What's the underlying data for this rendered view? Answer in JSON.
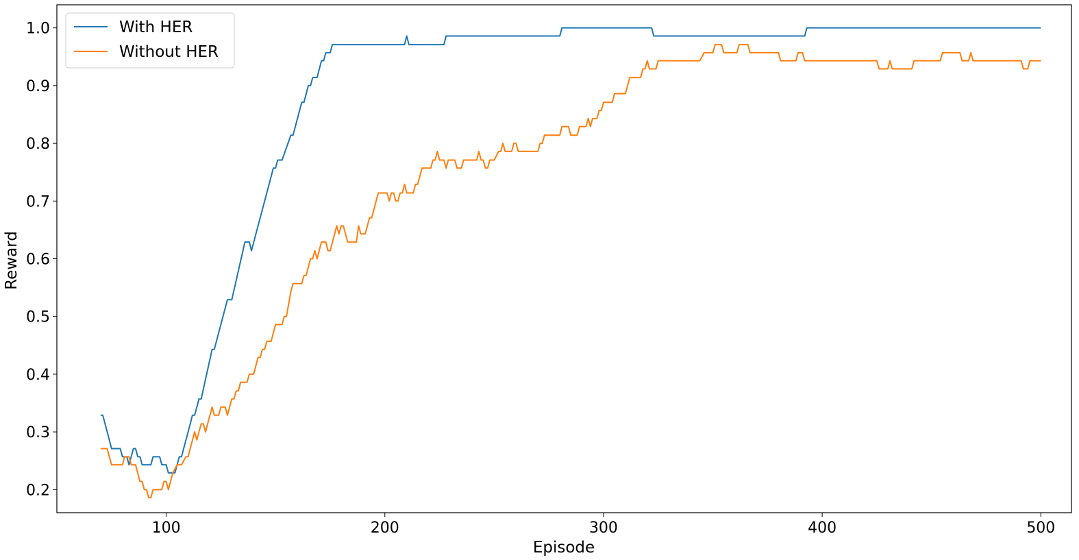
{
  "chart_data": {
    "type": "line",
    "title": "",
    "xlabel": "Episode",
    "ylabel": "Reward",
    "xlim": [
      50,
      514
    ],
    "ylim": [
      0.16,
      1.04
    ],
    "xticks": [
      100,
      200,
      300,
      400,
      500
    ],
    "yticks": [
      0.2,
      0.3,
      0.4,
      0.5,
      0.6,
      0.7,
      0.8,
      0.9,
      1.0
    ],
    "xtick_labels": [
      "100",
      "200",
      "300",
      "400",
      "500"
    ],
    "ytick_labels": [
      "0.2",
      "0.3",
      "0.4",
      "0.5",
      "0.6",
      "0.7",
      "0.8",
      "0.9",
      "1.0"
    ],
    "grid": false,
    "legend_position": "upper-left",
    "series": [
      {
        "name": "With HER",
        "color": "#1f77b4",
        "points": [
          [
            70,
            0.329
          ],
          [
            71,
            0.329
          ],
          [
            74,
            0.286
          ],
          [
            75,
            0.271
          ],
          [
            79,
            0.271
          ],
          [
            80,
            0.257
          ],
          [
            82,
            0.257
          ],
          [
            83,
            0.243
          ],
          [
            84,
            0.257
          ],
          [
            85,
            0.271
          ],
          [
            86,
            0.271
          ],
          [
            87,
            0.257
          ],
          [
            88,
            0.257
          ],
          [
            89,
            0.243
          ],
          [
            93,
            0.243
          ],
          [
            94,
            0.257
          ],
          [
            97,
            0.257
          ],
          [
            98,
            0.243
          ],
          [
            100,
            0.243
          ],
          [
            101,
            0.229
          ],
          [
            104,
            0.229
          ],
          [
            106,
            0.257
          ],
          [
            107,
            0.257
          ],
          [
            111,
            0.314
          ],
          [
            112,
            0.329
          ],
          [
            113,
            0.329
          ],
          [
            115,
            0.357
          ],
          [
            116,
            0.357
          ],
          [
            121,
            0.443
          ],
          [
            122,
            0.443
          ],
          [
            128,
            0.529
          ],
          [
            130,
            0.529
          ],
          [
            136,
            0.629
          ],
          [
            138,
            0.629
          ],
          [
            139,
            0.614
          ],
          [
            149,
            0.757
          ],
          [
            150,
            0.757
          ],
          [
            151,
            0.771
          ],
          [
            153,
            0.771
          ],
          [
            157,
            0.814
          ],
          [
            158,
            0.814
          ],
          [
            162,
            0.871
          ],
          [
            163,
            0.871
          ],
          [
            165,
            0.9
          ],
          [
            166,
            0.9
          ],
          [
            167,
            0.914
          ],
          [
            169,
            0.914
          ],
          [
            171,
            0.943
          ],
          [
            172,
            0.943
          ],
          [
            173,
            0.957
          ],
          [
            175,
            0.957
          ],
          [
            176,
            0.971
          ],
          [
            209,
            0.971
          ],
          [
            210,
            0.986
          ],
          [
            211,
            0.971
          ],
          [
            227,
            0.971
          ],
          [
            228,
            0.986
          ],
          [
            280,
            0.986
          ],
          [
            281,
            1.0
          ],
          [
            322,
            1.0
          ],
          [
            323,
            0.986
          ],
          [
            392,
            0.986
          ],
          [
            393,
            1.0
          ],
          [
            500,
            1.0
          ]
        ]
      },
      {
        "name": "Without HER",
        "color": "#ff7f0e",
        "points": [
          [
            70,
            0.271
          ],
          [
            73,
            0.271
          ],
          [
            74,
            0.257
          ],
          [
            75,
            0.243
          ],
          [
            80,
            0.243
          ],
          [
            81,
            0.257
          ],
          [
            83,
            0.257
          ],
          [
            84,
            0.243
          ],
          [
            86,
            0.243
          ],
          [
            88,
            0.214
          ],
          [
            89,
            0.214
          ],
          [
            90,
            0.2
          ],
          [
            91,
            0.2
          ],
          [
            92,
            0.186
          ],
          [
            93,
            0.186
          ],
          [
            94,
            0.2
          ],
          [
            98,
            0.2
          ],
          [
            99,
            0.214
          ],
          [
            100,
            0.214
          ],
          [
            101,
            0.2
          ],
          [
            102,
            0.214
          ],
          [
            103,
            0.229
          ],
          [
            105,
            0.243
          ],
          [
            107,
            0.243
          ],
          [
            109,
            0.257
          ],
          [
            110,
            0.257
          ],
          [
            113,
            0.3
          ],
          [
            114,
            0.286
          ],
          [
            116,
            0.314
          ],
          [
            117,
            0.314
          ],
          [
            118,
            0.3
          ],
          [
            121,
            0.343
          ],
          [
            122,
            0.329
          ],
          [
            124,
            0.329
          ],
          [
            125,
            0.343
          ],
          [
            127,
            0.343
          ],
          [
            128,
            0.329
          ],
          [
            130,
            0.357
          ],
          [
            131,
            0.357
          ],
          [
            132,
            0.371
          ],
          [
            133,
            0.371
          ],
          [
            134,
            0.386
          ],
          [
            137,
            0.386
          ],
          [
            138,
            0.4
          ],
          [
            140,
            0.4
          ],
          [
            142,
            0.429
          ],
          [
            143,
            0.429
          ],
          [
            144,
            0.443
          ],
          [
            145,
            0.443
          ],
          [
            146,
            0.457
          ],
          [
            148,
            0.457
          ],
          [
            150,
            0.486
          ],
          [
            153,
            0.486
          ],
          [
            154,
            0.5
          ],
          [
            155,
            0.5
          ],
          [
            157,
            0.543
          ],
          [
            158,
            0.557
          ],
          [
            162,
            0.557
          ],
          [
            163,
            0.571
          ],
          [
            164,
            0.571
          ],
          [
            166,
            0.6
          ],
          [
            167,
            0.6
          ],
          [
            168,
            0.614
          ],
          [
            169,
            0.6
          ],
          [
            171,
            0.629
          ],
          [
            173,
            0.629
          ],
          [
            174,
            0.614
          ],
          [
            175,
            0.614
          ],
          [
            178,
            0.657
          ],
          [
            179,
            0.643
          ],
          [
            180,
            0.657
          ],
          [
            181,
            0.657
          ],
          [
            183,
            0.629
          ],
          [
            187,
            0.629
          ],
          [
            188,
            0.657
          ],
          [
            189,
            0.643
          ],
          [
            191,
            0.643
          ],
          [
            192,
            0.657
          ],
          [
            193,
            0.671
          ],
          [
            194,
            0.671
          ],
          [
            196,
            0.7
          ],
          [
            197,
            0.714
          ],
          [
            201,
            0.714
          ],
          [
            202,
            0.7
          ],
          [
            203,
            0.714
          ],
          [
            204,
            0.714
          ],
          [
            205,
            0.7
          ],
          [
            206,
            0.7
          ],
          [
            207,
            0.714
          ],
          [
            208,
            0.714
          ],
          [
            209,
            0.729
          ],
          [
            210,
            0.714
          ],
          [
            213,
            0.714
          ],
          [
            214,
            0.729
          ],
          [
            215,
            0.729
          ],
          [
            217,
            0.757
          ],
          [
            221,
            0.757
          ],
          [
            222,
            0.771
          ],
          [
            223,
            0.771
          ],
          [
            224,
            0.786
          ],
          [
            225,
            0.771
          ],
          [
            227,
            0.771
          ],
          [
            228,
            0.757
          ],
          [
            229,
            0.771
          ],
          [
            232,
            0.771
          ],
          [
            233,
            0.757
          ],
          [
            235,
            0.757
          ],
          [
            236,
            0.771
          ],
          [
            242,
            0.771
          ],
          [
            243,
            0.786
          ],
          [
            244,
            0.771
          ],
          [
            245,
            0.771
          ],
          [
            246,
            0.757
          ],
          [
            247,
            0.757
          ],
          [
            248,
            0.771
          ],
          [
            250,
            0.771
          ],
          [
            252,
            0.786
          ],
          [
            253,
            0.786
          ],
          [
            254,
            0.8
          ],
          [
            255,
            0.786
          ],
          [
            258,
            0.786
          ],
          [
            259,
            0.8
          ],
          [
            260,
            0.8
          ],
          [
            261,
            0.786
          ],
          [
            270,
            0.786
          ],
          [
            271,
            0.8
          ],
          [
            272,
            0.8
          ],
          [
            273,
            0.814
          ],
          [
            280,
            0.814
          ],
          [
            281,
            0.829
          ],
          [
            284,
            0.829
          ],
          [
            285,
            0.814
          ],
          [
            288,
            0.814
          ],
          [
            289,
            0.829
          ],
          [
            292,
            0.829
          ],
          [
            293,
            0.843
          ],
          [
            294,
            0.829
          ],
          [
            295,
            0.843
          ],
          [
            297,
            0.843
          ],
          [
            298,
            0.857
          ],
          [
            299,
            0.857
          ],
          [
            300,
            0.871
          ],
          [
            304,
            0.871
          ],
          [
            305,
            0.886
          ],
          [
            310,
            0.886
          ],
          [
            312,
            0.914
          ],
          [
            317,
            0.914
          ],
          [
            318,
            0.929
          ],
          [
            319,
            0.929
          ],
          [
            320,
            0.943
          ],
          [
            321,
            0.929
          ],
          [
            324,
            0.929
          ],
          [
            325,
            0.943
          ],
          [
            344,
            0.943
          ],
          [
            346,
            0.957
          ],
          [
            350,
            0.957
          ],
          [
            351,
            0.971
          ],
          [
            354,
            0.971
          ],
          [
            355,
            0.957
          ],
          [
            361,
            0.957
          ],
          [
            362,
            0.971
          ],
          [
            366,
            0.971
          ],
          [
            367,
            0.957
          ],
          [
            380,
            0.957
          ],
          [
            381,
            0.943
          ],
          [
            388,
            0.943
          ],
          [
            389,
            0.957
          ],
          [
            391,
            0.957
          ],
          [
            392,
            0.943
          ],
          [
            425,
            0.943
          ],
          [
            426,
            0.929
          ],
          [
            430,
            0.929
          ],
          [
            431,
            0.943
          ],
          [
            432,
            0.929
          ],
          [
            441,
            0.929
          ],
          [
            442,
            0.943
          ],
          [
            454,
            0.943
          ],
          [
            455,
            0.957
          ],
          [
            463,
            0.957
          ],
          [
            464,
            0.943
          ],
          [
            467,
            0.943
          ],
          [
            468,
            0.957
          ],
          [
            469,
            0.943
          ],
          [
            491,
            0.943
          ],
          [
            492,
            0.929
          ],
          [
            494,
            0.929
          ],
          [
            495,
            0.943
          ],
          [
            500,
            0.943
          ]
        ]
      }
    ]
  }
}
